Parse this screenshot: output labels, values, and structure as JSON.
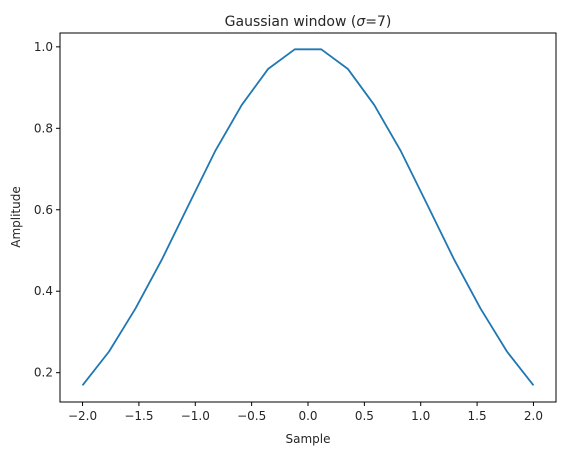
{
  "chart_data": {
    "type": "line",
    "title_main": "Gaussian window (",
    "title_sigma": "σ",
    "title_rest": "=7)",
    "xlabel": "Sample",
    "ylabel": "Amplitude",
    "xlim": [
      -2.2,
      2.2
    ],
    "ylim": [
      0.128,
      1.034
    ],
    "xticks": [
      -2.0,
      -1.5,
      -1.0,
      -0.5,
      0.0,
      0.5,
      1.0,
      1.5,
      2.0
    ],
    "xtick_labels": [
      "−2.0",
      "−1.5",
      "−1.0",
      "−0.5",
      "0.0",
      "0.5",
      "1.0",
      "1.5",
      "2.0"
    ],
    "yticks": [
      0.2,
      0.4,
      0.6,
      0.8,
      1.0
    ],
    "ytick_labels": [
      "0.2",
      "0.4",
      "0.6",
      "0.8",
      "1.0"
    ],
    "grid": false,
    "line_color": "#1f77b4",
    "series": [
      {
        "x": [
          -2.0,
          -1.7647,
          -1.5294,
          -1.2941,
          -1.0588,
          -0.8235,
          -0.5882,
          -0.3529,
          -0.1176,
          0.1176,
          0.3529,
          0.5882,
          0.8235,
          1.0588,
          1.2941,
          1.5294,
          1.7647,
          2.0
        ],
        "y": [
          0.169,
          0.252,
          0.358,
          0.479,
          0.612,
          0.744,
          0.857,
          0.946,
          0.994,
          0.994,
          0.946,
          0.857,
          0.744,
          0.612,
          0.479,
          0.358,
          0.252,
          0.169
        ]
      }
    ]
  }
}
